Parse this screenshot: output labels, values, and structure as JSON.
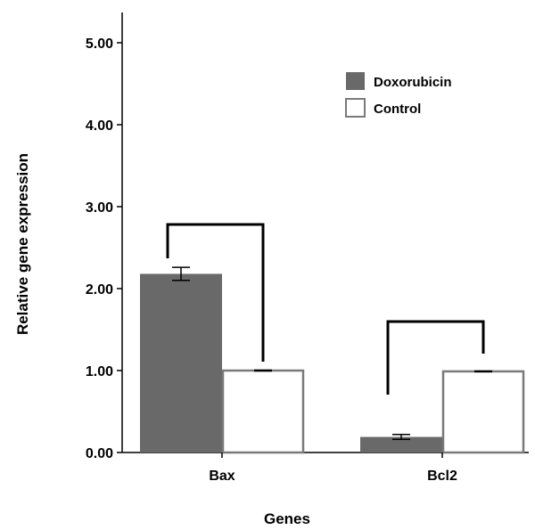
{
  "chart_data": {
    "type": "bar",
    "xlabel": "Genes",
    "ylabel": "Relative gene expression",
    "ylim": [
      0,
      5.5
    ],
    "yticks": [
      "0.00",
      "1.00",
      "2.00",
      "3.00",
      "4.00",
      "5.00"
    ],
    "categories": [
      "Bax",
      "Bcl2"
    ],
    "series": [
      {
        "name": "Doxorubicin",
        "values": [
          2.18,
          0.19
        ],
        "error": [
          0.08,
          0.03
        ],
        "color": "#696969"
      },
      {
        "name": "Control",
        "values": [
          1.0,
          0.99
        ],
        "error": [
          0.005,
          0.005
        ],
        "color": "#ffffff"
      }
    ],
    "legend_position": "top-right",
    "grid": false,
    "significance_brackets": true
  }
}
